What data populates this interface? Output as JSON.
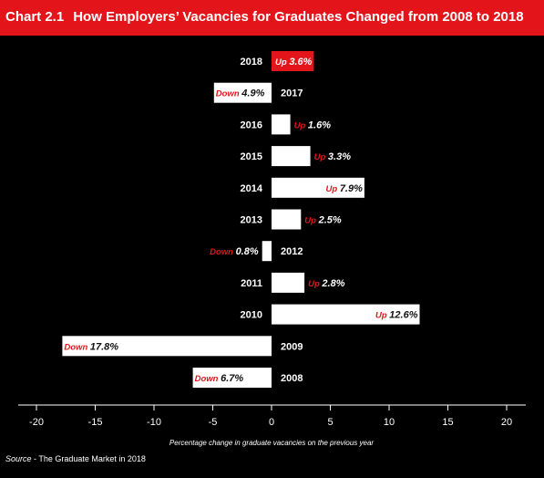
{
  "header": {
    "number": "Chart 2.1",
    "title": "How Employers’ Vacancies for Graduates Changed from 2008 to 2018"
  },
  "source": {
    "label": "Source",
    "text": " - The Graduate Market in 2018"
  },
  "colors": {
    "background": "#000000",
    "header": "#e3151a",
    "bar": "#ffffff",
    "highlight_bar": "#e3151a",
    "direction_word": "#e3151a",
    "text": "#ffffff"
  },
  "chart_data": {
    "type": "bar",
    "orientation": "horizontal",
    "title": "How Employers’ Vacancies for Graduates Changed from 2008 to 2018",
    "xlabel": "Percentage change in graduate vacancies on the previous year",
    "ylabel": "",
    "xlim": [
      -20,
      20
    ],
    "xticks": [
      "-20",
      "-15",
      "-10",
      "-5",
      "0",
      "5",
      "10",
      "15",
      "20"
    ],
    "grid": false,
    "categories": [
      "2018",
      "2017",
      "2016",
      "2015",
      "2014",
      "2013",
      "2012",
      "2011",
      "2010",
      "2009",
      "2008"
    ],
    "values": [
      3.6,
      -4.9,
      1.6,
      3.3,
      7.9,
      2.5,
      -0.8,
      2.8,
      12.6,
      -17.8,
      -6.7
    ],
    "direction_words": [
      "Up",
      "Down",
      "Up",
      "Up",
      "Up",
      "Up",
      "Down",
      "Up",
      "Up",
      "Down",
      "Down"
    ],
    "value_labels": [
      "3.6%",
      "4.9%",
      "1.6%",
      "3.3%",
      "7.9%",
      "2.5%",
      "0.8%",
      "2.8%",
      "12.6%",
      "17.8%",
      "6.7%"
    ],
    "highlighted": "2018"
  }
}
